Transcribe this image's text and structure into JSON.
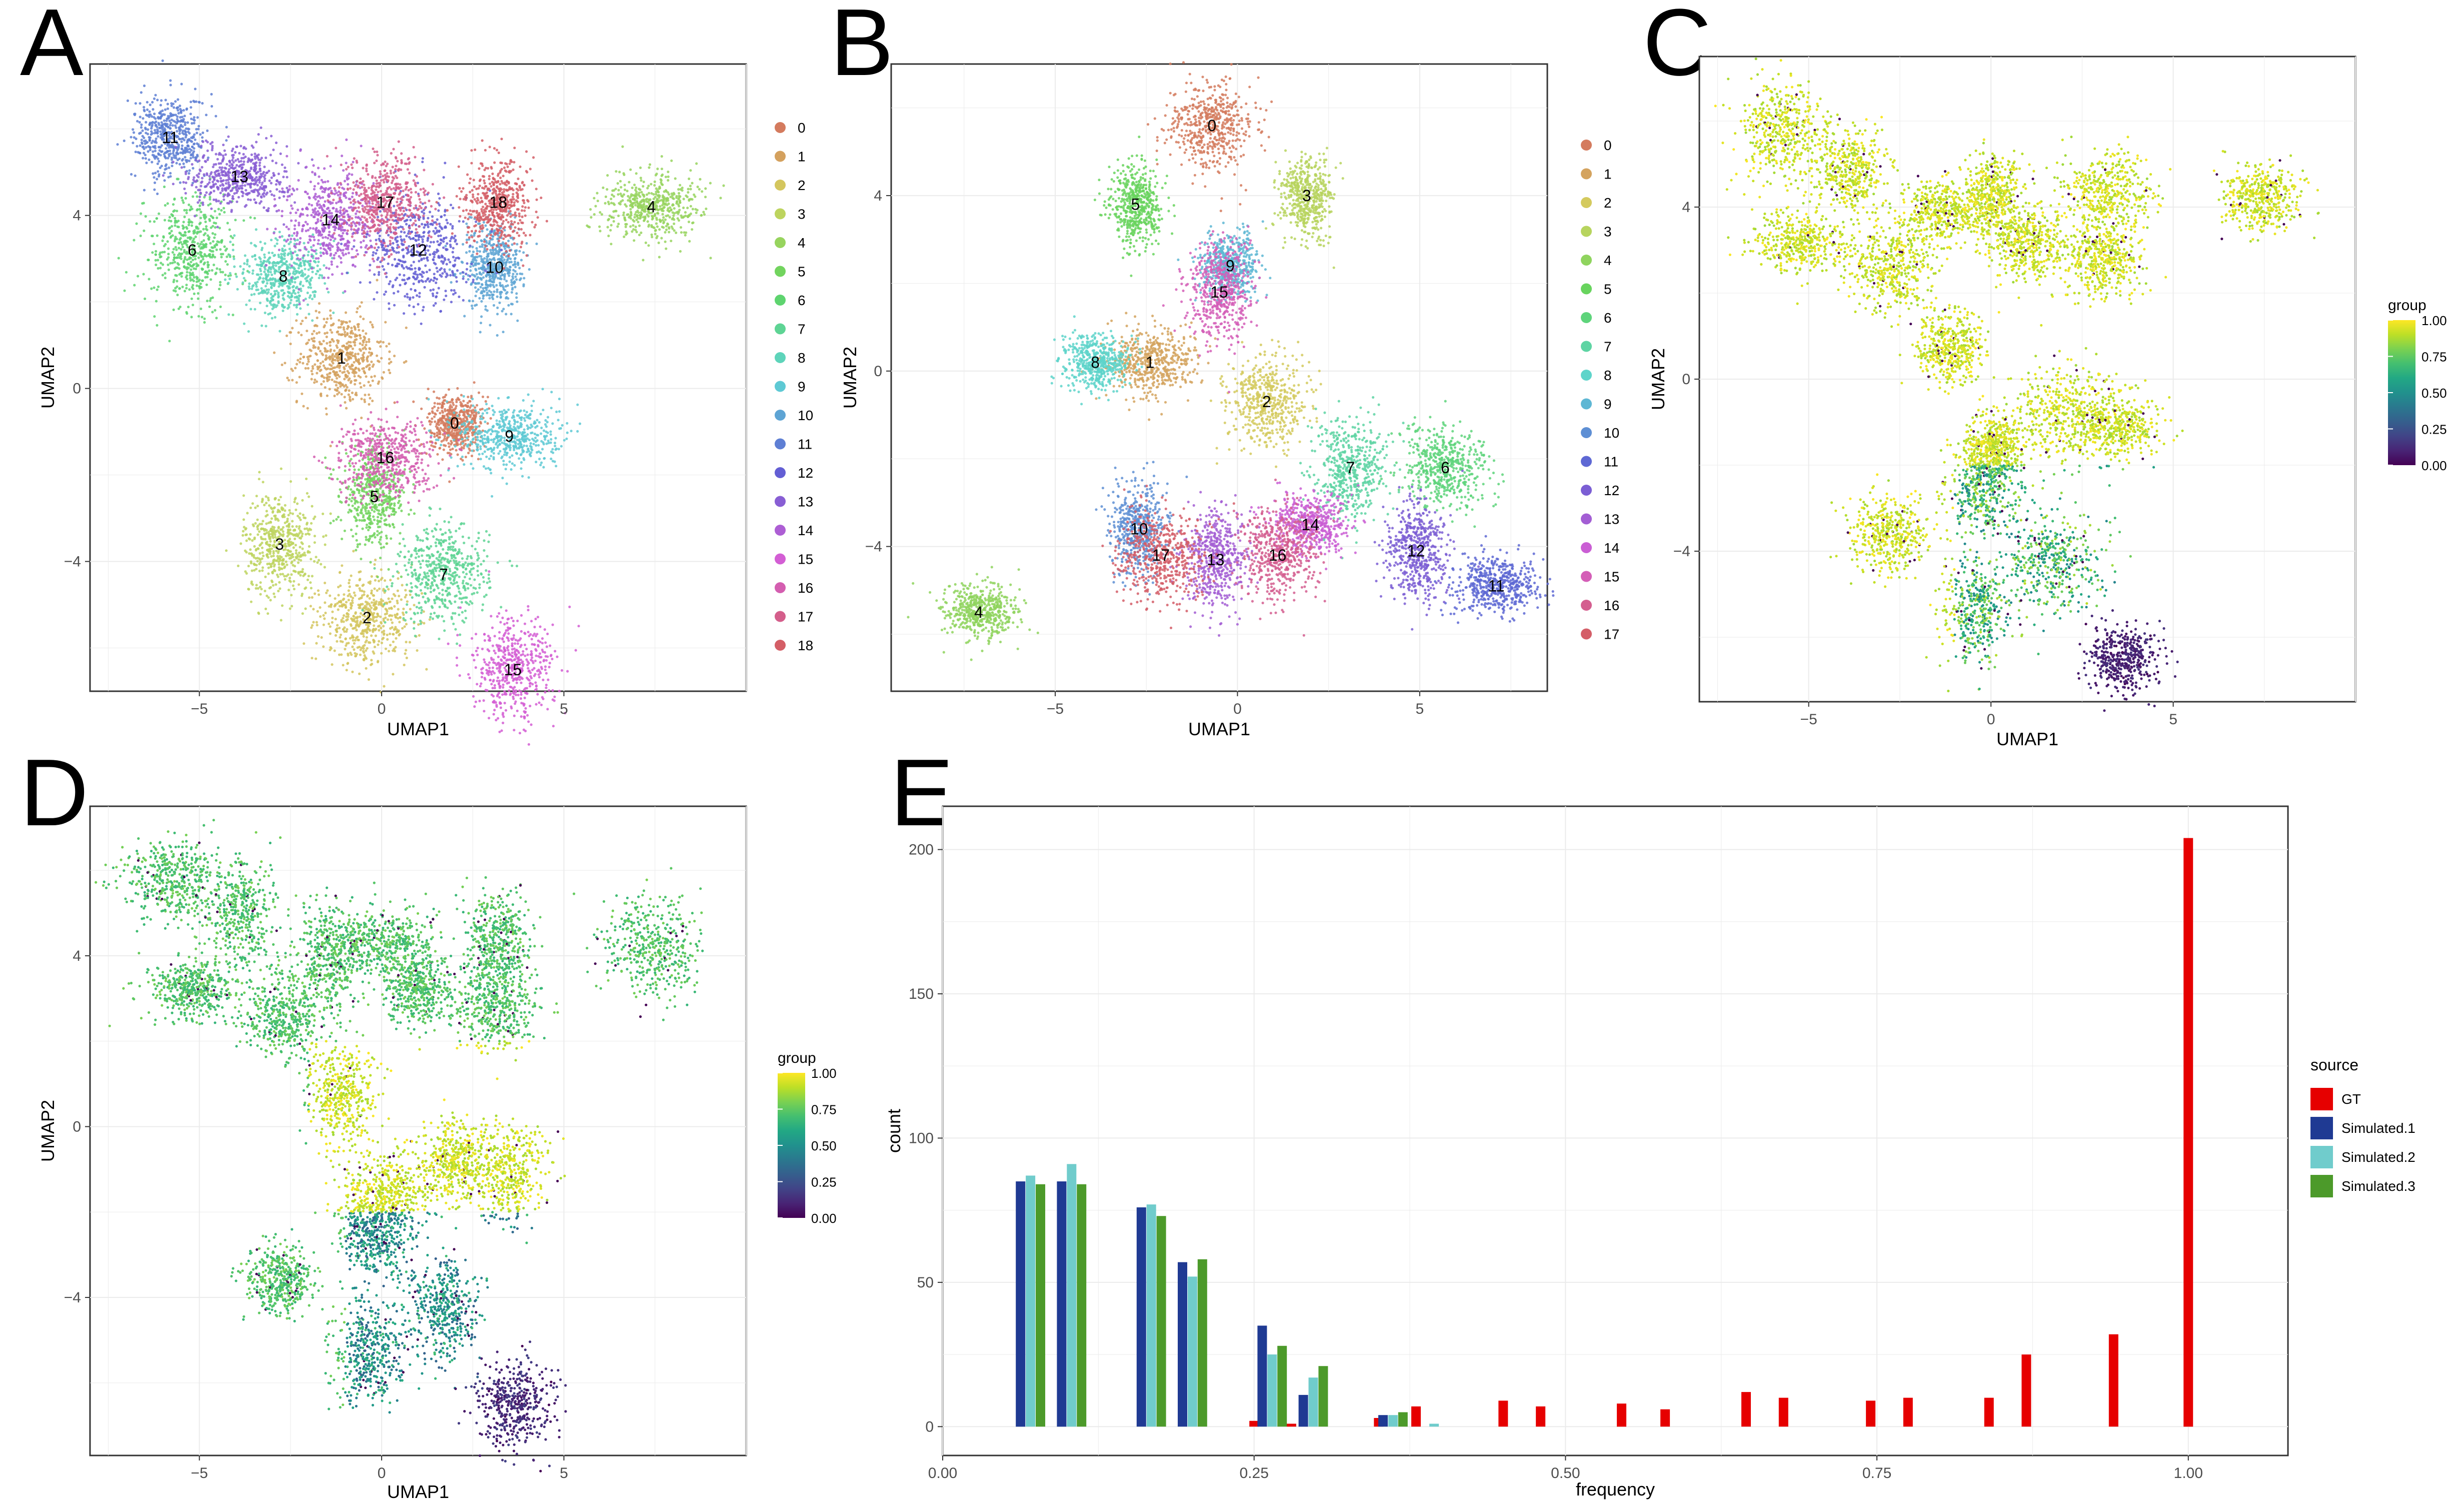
{
  "figure_title": "Multi-panel UMAP and frequency figure",
  "colors": {
    "gt": "#e60000",
    "sim1": "#1f3a93",
    "sim2": "#70cccc",
    "sim3": "#4c9a2a",
    "grid": "#ebebeb",
    "panel_border": "#333333"
  },
  "panels": {
    "A": {
      "label": "A",
      "xlabel": "UMAP1",
      "ylabel": "UMAP2",
      "xticks": [
        "−5",
        "0",
        "5"
      ],
      "yticks": [
        "4",
        "0",
        "−4"
      ],
      "legend": [
        "0",
        "1",
        "2",
        "3",
        "4",
        "5",
        "6",
        "7",
        "8",
        "9",
        "10",
        "11",
        "12",
        "13",
        "14",
        "15",
        "16",
        "17",
        "18"
      ],
      "cluster_labels": [
        "0",
        "1",
        "2",
        "3",
        "4",
        "5",
        "6",
        "7",
        "8",
        "9",
        "10",
        "11",
        "12",
        "13",
        "14",
        "15",
        "16",
        "17",
        "18"
      ]
    },
    "B": {
      "label": "B",
      "xlabel": "UMAP1",
      "ylabel": "UMAP2",
      "xticks": [
        "−5",
        "0",
        "5"
      ],
      "yticks": [
        "4",
        "0",
        "−4"
      ],
      "legend": [
        "0",
        "1",
        "2",
        "3",
        "4",
        "5",
        "6",
        "7",
        "8",
        "9",
        "10",
        "11",
        "12",
        "13",
        "14",
        "15",
        "16",
        "17"
      ],
      "cluster_labels": [
        "0",
        "1",
        "2",
        "3",
        "4",
        "5",
        "6",
        "7",
        "8",
        "9",
        "10",
        "11",
        "12",
        "13",
        "14",
        "15",
        "16",
        "17"
      ]
    },
    "C": {
      "label": "C",
      "xlabel": "UMAP1",
      "ylabel": "UMAP2",
      "xticks": [
        "−5",
        "0",
        "5"
      ],
      "yticks": [
        "4",
        "0",
        "−4"
      ],
      "legend_title": "group",
      "legend_ticks": [
        "1.00",
        "0.75",
        "0.50",
        "0.25",
        "0.00"
      ]
    },
    "D": {
      "label": "D",
      "xlabel": "UMAP1",
      "ylabel": "UMAP2",
      "xticks": [
        "−5",
        "0",
        "5"
      ],
      "yticks": [
        "4",
        "0",
        "−4"
      ],
      "legend_title": "group",
      "legend_ticks": [
        "1.00",
        "0.75",
        "0.50",
        "0.25",
        "0.00"
      ]
    },
    "E": {
      "label": "E"
    }
  },
  "chart_data": [
    {
      "panel": "A",
      "type": "scatter",
      "title": "",
      "xlabel": "UMAP1",
      "ylabel": "UMAP2",
      "xlim": [
        -8,
        10
      ],
      "ylim": [
        -7,
        7.5
      ],
      "x_ticks": [
        -5,
        0,
        5
      ],
      "y_ticks": [
        -4,
        0,
        4
      ],
      "legend_entries": [
        "0",
        "1",
        "2",
        "3",
        "4",
        "5",
        "6",
        "7",
        "8",
        "9",
        "10",
        "11",
        "12",
        "13",
        "14",
        "15",
        "16",
        "17",
        "18"
      ],
      "cluster_centers": [
        {
          "label": "0",
          "x": 2.0,
          "y": -0.8
        },
        {
          "label": "1",
          "x": -1.1,
          "y": 0.7
        },
        {
          "label": "2",
          "x": -0.4,
          "y": -5.3
        },
        {
          "label": "3",
          "x": -2.8,
          "y": -3.6
        },
        {
          "label": "4",
          "x": 7.4,
          "y": 4.2
        },
        {
          "label": "5",
          "x": -0.2,
          "y": -2.5
        },
        {
          "label": "6",
          "x": -5.2,
          "y": 3.2
        },
        {
          "label": "7",
          "x": 1.7,
          "y": -4.3
        },
        {
          "label": "8",
          "x": -2.7,
          "y": 2.6
        },
        {
          "label": "9",
          "x": 3.5,
          "y": -1.1
        },
        {
          "label": "10",
          "x": 3.1,
          "y": 2.8
        },
        {
          "label": "11",
          "x": -5.8,
          "y": 5.8
        },
        {
          "label": "12",
          "x": 1.0,
          "y": 3.2
        },
        {
          "label": "13",
          "x": -3.9,
          "y": 4.9
        },
        {
          "label": "14",
          "x": -1.4,
          "y": 3.9
        },
        {
          "label": "15",
          "x": 3.6,
          "y": -6.5
        },
        {
          "label": "16",
          "x": 0.1,
          "y": -1.6
        },
        {
          "label": "17",
          "x": 0.1,
          "y": 4.3
        },
        {
          "label": "18",
          "x": 3.2,
          "y": 4.3
        }
      ]
    },
    {
      "panel": "B",
      "type": "scatter",
      "title": "",
      "xlabel": "UMAP1",
      "ylabel": "UMAP2",
      "xlim": [
        -9.5,
        8.5
      ],
      "ylim": [
        -7.3,
        7
      ],
      "x_ticks": [
        -5,
        0,
        5
      ],
      "y_ticks": [
        -4,
        0,
        4
      ],
      "legend_entries": [
        "0",
        "1",
        "2",
        "3",
        "4",
        "5",
        "6",
        "7",
        "8",
        "9",
        "10",
        "11",
        "12",
        "13",
        "14",
        "15",
        "16",
        "17"
      ],
      "cluster_centers": [
        {
          "label": "0",
          "x": -0.7,
          "y": 5.6
        },
        {
          "label": "1",
          "x": -2.4,
          "y": 0.2
        },
        {
          "label": "2",
          "x": 0.8,
          "y": -0.7
        },
        {
          "label": "3",
          "x": 1.9,
          "y": 4.0
        },
        {
          "label": "4",
          "x": -7.1,
          "y": -5.5
        },
        {
          "label": "5",
          "x": -2.8,
          "y": 3.8
        },
        {
          "label": "6",
          "x": 5.7,
          "y": -2.2
        },
        {
          "label": "7",
          "x": 3.1,
          "y": -2.2
        },
        {
          "label": "8",
          "x": -3.9,
          "y": 0.2
        },
        {
          "label": "9",
          "x": -0.2,
          "y": 2.4
        },
        {
          "label": "10",
          "x": -2.7,
          "y": -3.6
        },
        {
          "label": "11",
          "x": 7.1,
          "y": -4.9
        },
        {
          "label": "12",
          "x": 4.9,
          "y": -4.1
        },
        {
          "label": "13",
          "x": -0.6,
          "y": -4.3
        },
        {
          "label": "14",
          "x": 2.0,
          "y": -3.5
        },
        {
          "label": "15",
          "x": -0.5,
          "y": 1.8
        },
        {
          "label": "16",
          "x": 1.1,
          "y": -4.2
        },
        {
          "label": "17",
          "x": -2.1,
          "y": -4.2
        }
      ]
    },
    {
      "panel": "C",
      "type": "scatter",
      "title": "",
      "xlabel": "UMAP1",
      "ylabel": "UMAP2",
      "xlim": [
        -8,
        10
      ],
      "ylim": [
        -7.5,
        7.5
      ],
      "x_ticks": [
        -5,
        0,
        5
      ],
      "y_ticks": [
        -4,
        0,
        4
      ],
      "color_scale": {
        "title": "group",
        "min": 0.0,
        "max": 1.0,
        "ticks": [
          1.0,
          0.75,
          0.5,
          0.25,
          0.0
        ]
      }
    },
    {
      "panel": "D",
      "type": "scatter",
      "title": "",
      "xlabel": "UMAP1",
      "ylabel": "UMAP2",
      "xlim": [
        -8,
        10
      ],
      "ylim": [
        -7.7,
        7.5
      ],
      "x_ticks": [
        -5,
        0,
        5
      ],
      "y_ticks": [
        -4,
        0,
        4
      ],
      "color_scale": {
        "title": "group",
        "min": 0.0,
        "max": 1.0,
        "ticks": [
          1.0,
          0.75,
          0.5,
          0.25,
          0.0
        ]
      }
    },
    {
      "panel": "E",
      "type": "bar",
      "title": "",
      "xlabel": "frequency",
      "ylabel": "count",
      "xlim": [
        0,
        1.08
      ],
      "ylim": [
        -10,
        215
      ],
      "x_ticks": [
        "0.00",
        "0.25",
        "0.50",
        "0.75",
        "1.00"
      ],
      "y_ticks": [
        "0",
        "50",
        "100",
        "150",
        "200"
      ],
      "legend_title": "source",
      "series": [
        {
          "name": "GT",
          "color_key": "gt",
          "points": [
            {
              "x": 0.25,
              "y": 2
            },
            {
              "x": 0.28,
              "y": 1
            },
            {
              "x": 0.35,
              "y": 3
            },
            {
              "x": 0.38,
              "y": 7
            },
            {
              "x": 0.45,
              "y": 9
            },
            {
              "x": 0.48,
              "y": 7
            },
            {
              "x": 0.545,
              "y": 8
            },
            {
              "x": 0.58,
              "y": 6
            },
            {
              "x": 0.645,
              "y": 12
            },
            {
              "x": 0.675,
              "y": 10
            },
            {
              "x": 0.745,
              "y": 9
            },
            {
              "x": 0.775,
              "y": 10
            },
            {
              "x": 0.84,
              "y": 10
            },
            {
              "x": 0.87,
              "y": 25
            },
            {
              "x": 0.94,
              "y": 32
            },
            {
              "x": 1.0,
              "y": 204
            }
          ]
        },
        {
          "name": "Simulated.1",
          "color_key": "sim1",
          "points": [
            {
              "x": 0.0625,
              "y": 85
            },
            {
              "x": 0.0955,
              "y": 85
            },
            {
              "x": 0.1595,
              "y": 76
            },
            {
              "x": 0.1925,
              "y": 57
            },
            {
              "x": 0.2565,
              "y": 35
            },
            {
              "x": 0.2895,
              "y": 11
            },
            {
              "x": 0.3535,
              "y": 4
            }
          ]
        },
        {
          "name": "Simulated.2",
          "color_key": "sim2",
          "points": [
            {
              "x": 0.0705,
              "y": 87
            },
            {
              "x": 0.1035,
              "y": 91
            },
            {
              "x": 0.1675,
              "y": 77
            },
            {
              "x": 0.2005,
              "y": 52
            },
            {
              "x": 0.2645,
              "y": 25
            },
            {
              "x": 0.2975,
              "y": 17
            },
            {
              "x": 0.3615,
              "y": 4
            },
            {
              "x": 0.3945,
              "y": 1
            }
          ]
        },
        {
          "name": "Simulated.3",
          "color_key": "sim3",
          "points": [
            {
              "x": 0.0785,
              "y": 84
            },
            {
              "x": 0.1115,
              "y": 84
            },
            {
              "x": 0.1755,
              "y": 73
            },
            {
              "x": 0.2085,
              "y": 58
            },
            {
              "x": 0.2725,
              "y": 28
            },
            {
              "x": 0.3055,
              "y": 21
            },
            {
              "x": 0.3695,
              "y": 5
            }
          ]
        }
      ]
    }
  ]
}
